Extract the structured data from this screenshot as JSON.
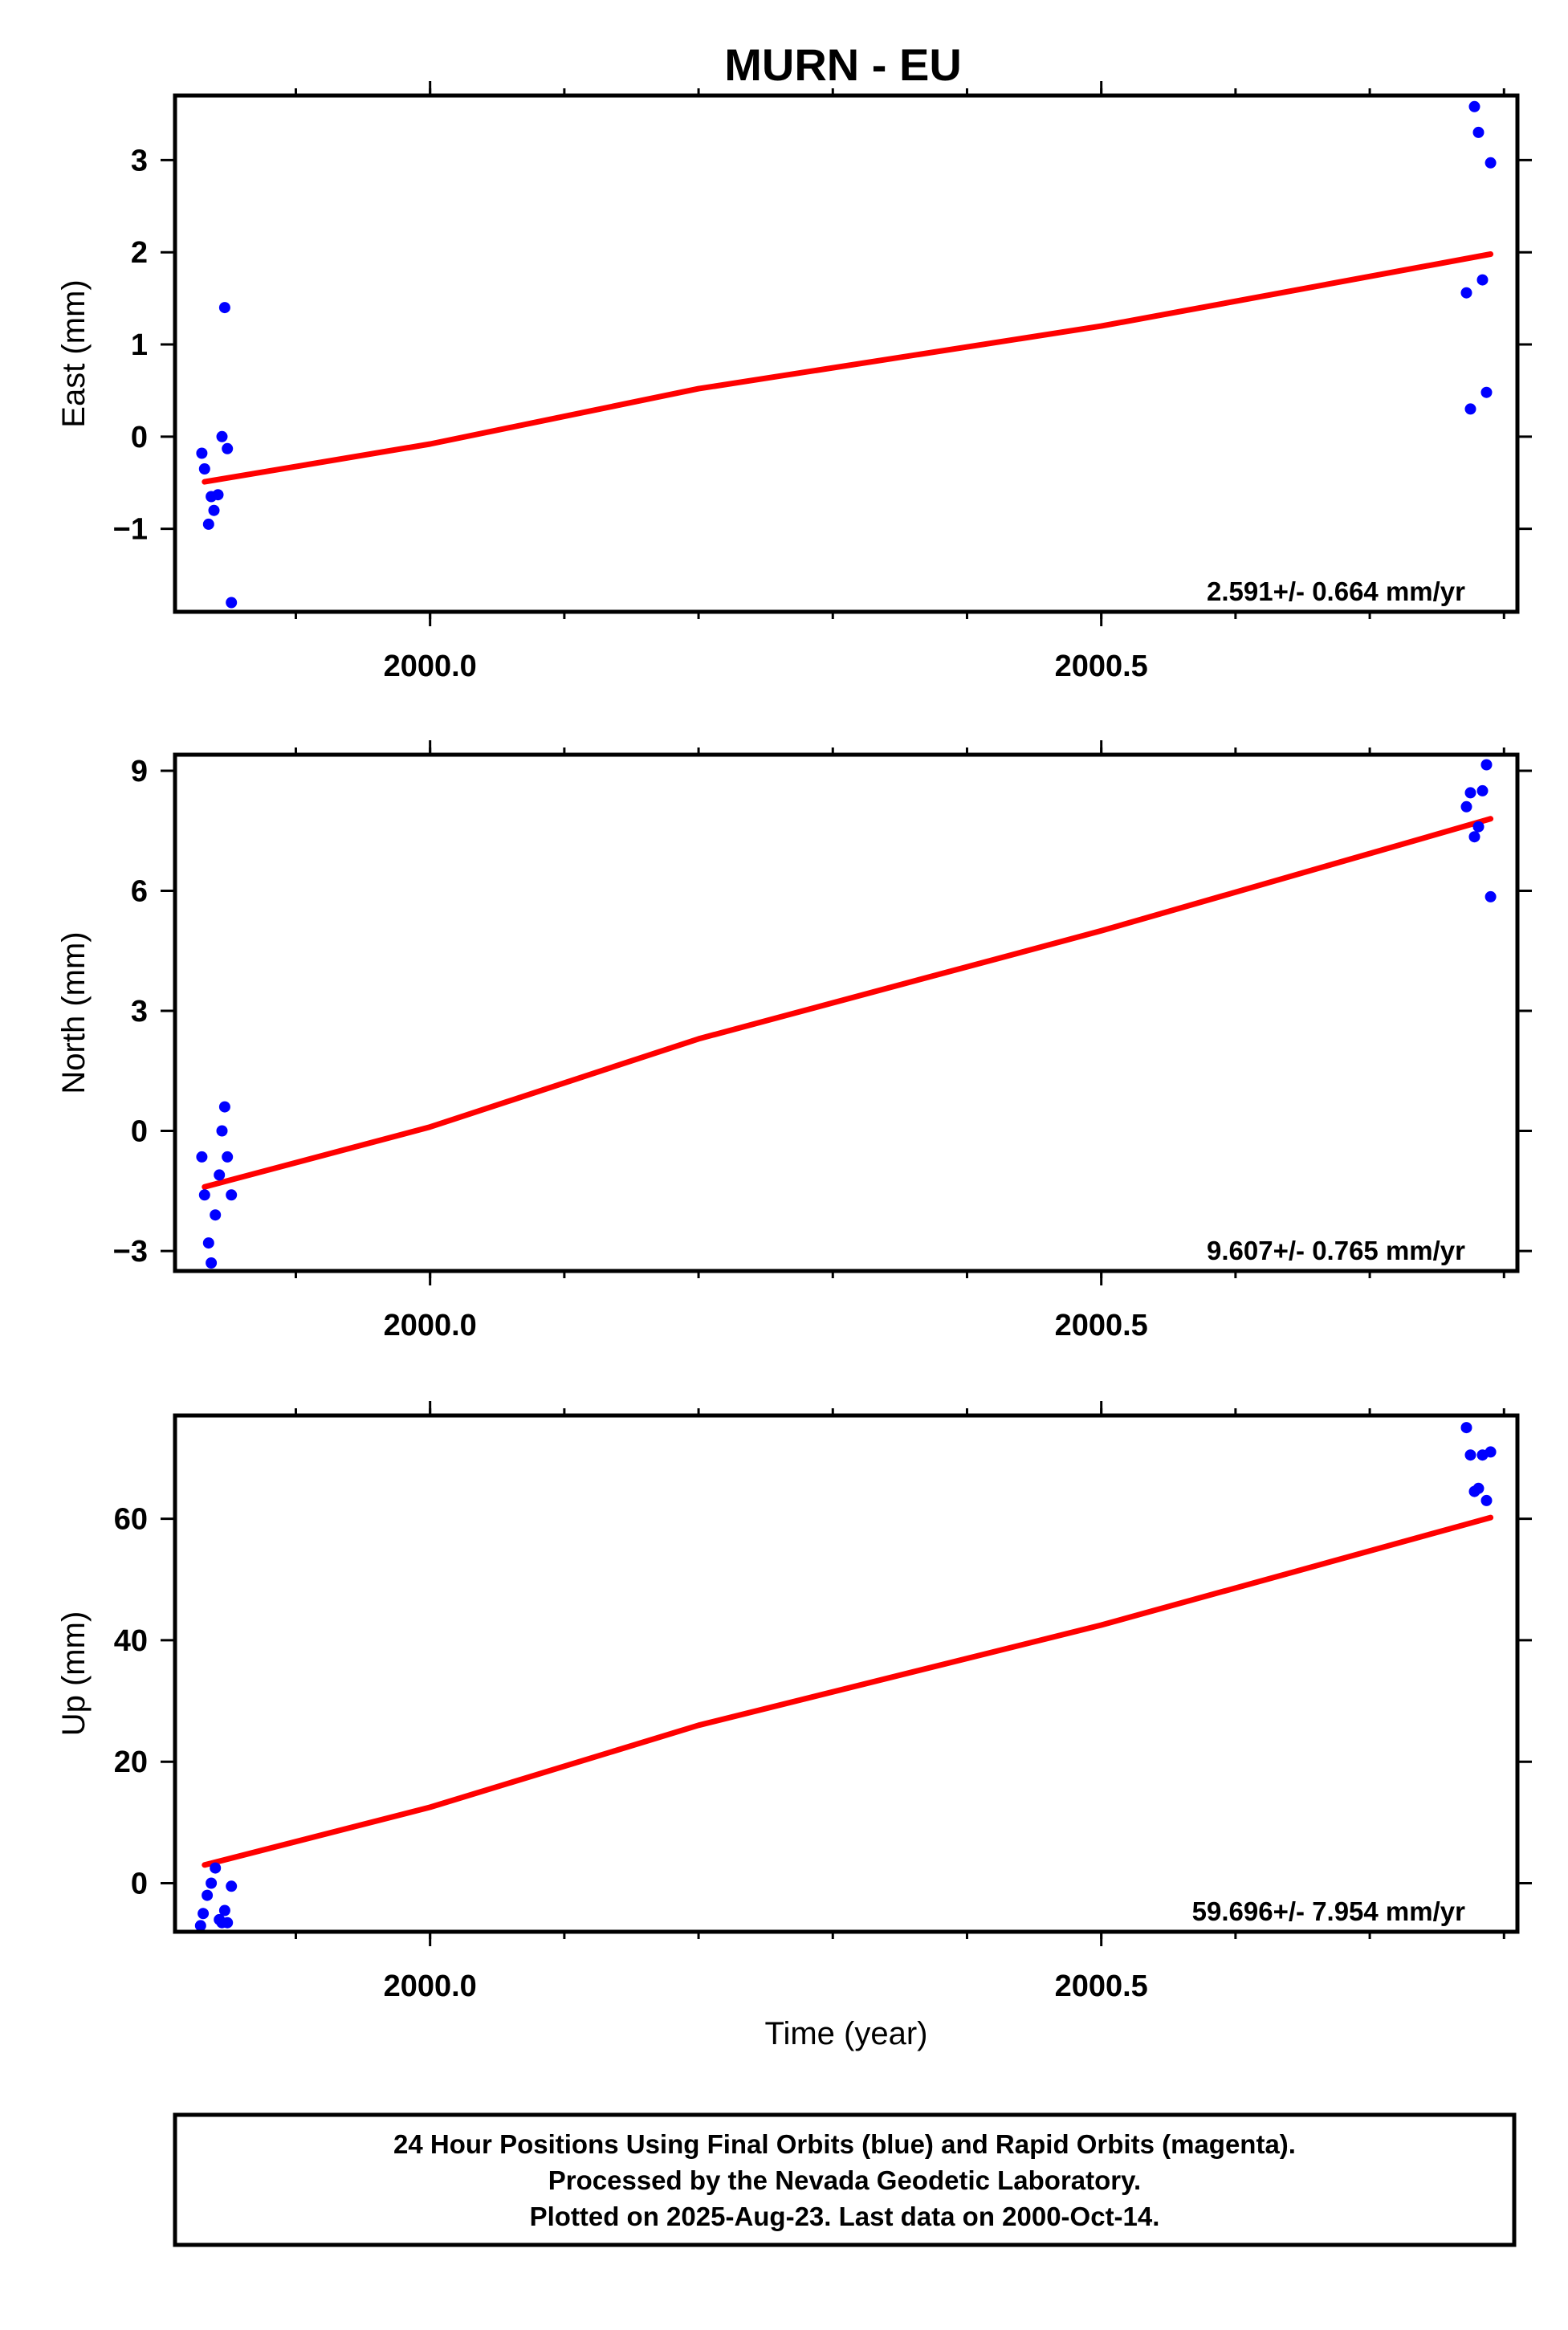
{
  "title": "MURN - EU",
  "colors": {
    "points": "#0000ff",
    "fit": "#ff0000",
    "frame": "#000000"
  },
  "chart_data": [
    {
      "type": "scatter",
      "ylabel": "East (mm)",
      "xlabel": "",
      "xlim": [
        1999.81,
        2000.81
      ],
      "ylim": [
        -1.9,
        3.7
      ],
      "xticks": [
        2000.0,
        2000.5
      ],
      "xtick_labels": [
        "2000.0",
        "2000.5"
      ],
      "yticks": [
        -1,
        0,
        1,
        2,
        3
      ],
      "ytick_labels": [
        "−1",
        "0",
        "1",
        "2",
        "3"
      ],
      "points": [
        [
          1999.83,
          -0.18
        ],
        [
          1999.832,
          -0.35
        ],
        [
          1999.835,
          -0.95
        ],
        [
          1999.837,
          -0.65
        ],
        [
          1999.839,
          -0.8
        ],
        [
          1999.842,
          -0.63
        ],
        [
          1999.845,
          0.0
        ],
        [
          1999.847,
          1.4
        ],
        [
          1999.849,
          -0.13
        ],
        [
          1999.852,
          -1.8
        ],
        [
          2000.772,
          1.56
        ],
        [
          2000.775,
          0.3
        ],
        [
          2000.778,
          3.58
        ],
        [
          2000.781,
          3.3
        ],
        [
          2000.784,
          1.7
        ],
        [
          2000.787,
          0.48
        ],
        [
          2000.79,
          2.97
        ]
      ],
      "fit": [
        [
          1999.832,
          -0.49
        ],
        [
          2000.0,
          -0.08
        ],
        [
          2000.2,
          0.52
        ],
        [
          2000.5,
          1.2
        ],
        [
          2000.79,
          1.98
        ]
      ],
      "rate": "2.591+/- 0.664 mm/yr"
    },
    {
      "type": "scatter",
      "ylabel": "North (mm)",
      "xlabel": "",
      "xlim": [
        1999.81,
        2000.81
      ],
      "ylim": [
        -3.5,
        9.4
      ],
      "xticks": [
        2000.0,
        2000.5
      ],
      "xtick_labels": [
        "2000.0",
        "2000.5"
      ],
      "yticks": [
        -3,
        0,
        3,
        6,
        9
      ],
      "ytick_labels": [
        "−3",
        "0",
        "3",
        "6",
        "9"
      ],
      "points": [
        [
          1999.83,
          -0.65
        ],
        [
          1999.832,
          -1.6
        ],
        [
          1999.835,
          -2.8
        ],
        [
          1999.837,
          -3.3
        ],
        [
          1999.84,
          -2.1
        ],
        [
          1999.843,
          -1.1
        ],
        [
          1999.845,
          0.0
        ],
        [
          1999.847,
          0.6
        ],
        [
          1999.849,
          -0.65
        ],
        [
          1999.852,
          -1.6
        ],
        [
          2000.772,
          8.1
        ],
        [
          2000.775,
          8.45
        ],
        [
          2000.778,
          7.35
        ],
        [
          2000.781,
          7.6
        ],
        [
          2000.784,
          8.5
        ],
        [
          2000.787,
          9.15
        ],
        [
          2000.79,
          5.85
        ]
      ],
      "fit": [
        [
          1999.832,
          -1.4
        ],
        [
          2000.0,
          0.1
        ],
        [
          2000.2,
          2.3
        ],
        [
          2000.5,
          5.0
        ],
        [
          2000.79,
          7.8
        ]
      ],
      "rate": "9.607+/- 0.765 mm/yr"
    },
    {
      "type": "scatter",
      "ylabel": "Up (mm)",
      "xlabel": "Time (year)",
      "xlim": [
        1999.81,
        2000.81
      ],
      "ylim": [
        -8,
        77
      ],
      "xticks": [
        2000.0,
        2000.5
      ],
      "xtick_labels": [
        "2000.0",
        "2000.5"
      ],
      "yticks": [
        0,
        20,
        40,
        60
      ],
      "ytick_labels": [
        "0",
        "20",
        "40",
        "60"
      ],
      "points": [
        [
          1999.829,
          -7.0
        ],
        [
          1999.831,
          -5.0
        ],
        [
          1999.834,
          -2.0
        ],
        [
          1999.837,
          0.0
        ],
        [
          1999.84,
          2.5
        ],
        [
          1999.843,
          -6.0
        ],
        [
          1999.845,
          -6.5
        ],
        [
          1999.847,
          -4.5
        ],
        [
          1999.849,
          -6.5
        ],
        [
          1999.852,
          -0.5
        ],
        [
          2000.772,
          75.0
        ],
        [
          2000.775,
          70.5
        ],
        [
          2000.778,
          64.5
        ],
        [
          2000.781,
          65.0
        ],
        [
          2000.784,
          70.5
        ],
        [
          2000.787,
          63.0
        ],
        [
          2000.79,
          71.0
        ]
      ],
      "fit": [
        [
          1999.832,
          3.0
        ],
        [
          2000.0,
          12.5
        ],
        [
          2000.2,
          26.0
        ],
        [
          2000.5,
          42.5
        ],
        [
          2000.79,
          60.2
        ]
      ],
      "rate": "59.696+/- 7.954 mm/yr"
    }
  ],
  "footer": {
    "line1": "24 Hour Positions Using Final Orbits (blue) and Rapid Orbits (magenta).",
    "line2": "Processed by the Nevada Geodetic Laboratory.",
    "line3": "Plotted on 2025-Aug-23. Last data on 2000-Oct-14."
  }
}
